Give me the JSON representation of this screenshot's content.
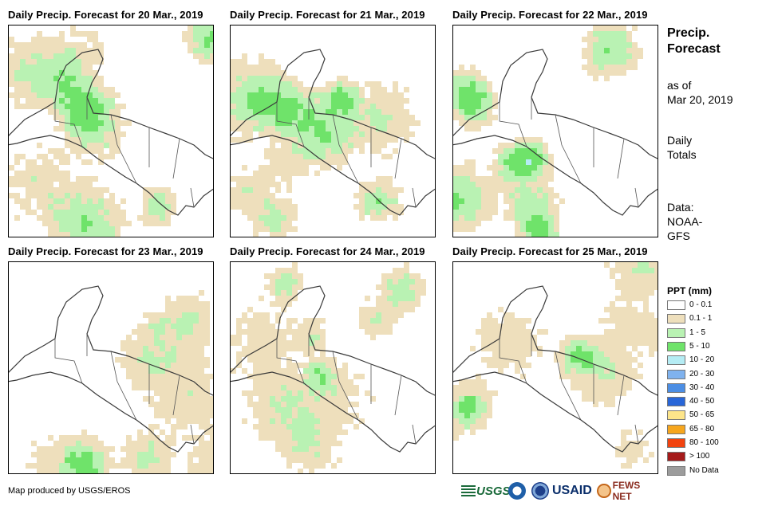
{
  "panels": [
    {
      "title": "Daily Precip. Forecast for 20 Mar., 2019",
      "seed": 11,
      "wet": 0.55,
      "storm": 0.35
    },
    {
      "title": "Daily Precip. Forecast for 21 Mar., 2019",
      "seed": 23,
      "wet": 0.5,
      "storm": 0.4
    },
    {
      "title": "Daily Precip. Forecast for 22 Mar., 2019",
      "seed": 37,
      "wet": 0.55,
      "storm": 0.3
    },
    {
      "title": "Daily Precip. Forecast for 23 Mar., 2019",
      "seed": 41,
      "wet": 0.35,
      "storm": 0.2
    },
    {
      "title": "Daily Precip. Forecast for 24 Mar., 2019",
      "seed": 53,
      "wet": 0.5,
      "storm": 0.15
    },
    {
      "title": "Daily Precip. Forecast for 25 Mar., 2019",
      "seed": 67,
      "wet": 0.35,
      "storm": 0.1
    }
  ],
  "side": {
    "title_line1": "Precip.",
    "title_line2": "Forecast",
    "asof_line1": "as of",
    "asof_line2": "Mar 20, 2019",
    "totals_line1": "Daily",
    "totals_line2": "Totals",
    "data_line1": "Data:",
    "data_line2": "NOAA-",
    "data_line3": "GFS"
  },
  "legend": {
    "title": "PPT (mm)",
    "items": [
      {
        "label": "0 - 0.1",
        "color": "#ffffff"
      },
      {
        "label": "0.1 - 1",
        "color": "#eedfbc"
      },
      {
        "label": "1 - 5",
        "color": "#b9f2b3"
      },
      {
        "label": "5 - 10",
        "color": "#6fe36a"
      },
      {
        "label": "10 - 20",
        "color": "#b5ecf4"
      },
      {
        "label": "20 - 30",
        "color": "#7fb2ee"
      },
      {
        "label": "30 - 40",
        "color": "#4c8ee4"
      },
      {
        "label": "40 - 50",
        "color": "#2866d8"
      },
      {
        "label": "50 - 65",
        "color": "#fde58a"
      },
      {
        "label": "65 - 80",
        "color": "#f6a61e"
      },
      {
        "label": "80 - 100",
        "color": "#f2430f"
      },
      {
        "label": "> 100",
        "color": "#a51a1a"
      },
      {
        "label": "No Data",
        "color": "#9c9c9c"
      }
    ]
  },
  "footer": {
    "credit": "Map produced by USGS/EROS",
    "logo_usgs": "USGS",
    "logo_usaid": "USAID",
    "logo_fews": "FEWS NET"
  }
}
